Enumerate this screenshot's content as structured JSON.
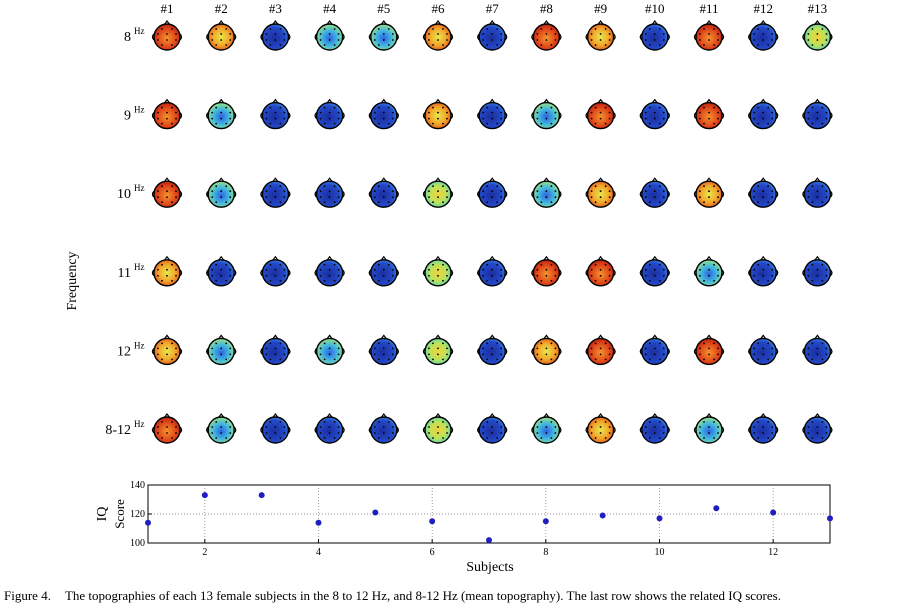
{
  "figure": {
    "subject_labels": [
      "#1",
      "#2",
      "#3",
      "#4",
      "#5",
      "#6",
      "#7",
      "#8",
      "#9",
      "#10",
      "#11",
      "#12",
      "#13"
    ],
    "y_axis_title": "Frequency",
    "rows": [
      {
        "label": "8",
        "unit": "Hz"
      },
      {
        "label": "9",
        "unit": "Hz"
      },
      {
        "label": "10",
        "unit": "Hz"
      },
      {
        "label": "11",
        "unit": "Hz"
      },
      {
        "label": "12",
        "unit": "Hz"
      },
      {
        "label": "8-12",
        "unit": "Hz"
      }
    ],
    "colors": {
      "high": "#d93a18",
      "mid_high": "#f2a52a",
      "mid": "#e8e84a",
      "mid_low": "#41d8c9",
      "low": "#2449c9",
      "outline": "#000000"
    },
    "topomaps": [
      [
        "high",
        "mid_high",
        "low",
        "mid_low",
        "mid_low",
        "mid_high",
        "low",
        "high",
        "mid_high",
        "low",
        "high",
        "low",
        "mid"
      ],
      [
        "high",
        "mid_low",
        "low",
        "low",
        "low",
        "mid_high",
        "low",
        "mid_low",
        "high",
        "low",
        "high",
        "low",
        "low"
      ],
      [
        "high",
        "mid_low",
        "low",
        "low",
        "low",
        "mid",
        "low",
        "mid_low",
        "mid_high",
        "low",
        "mid_high",
        "low",
        "low"
      ],
      [
        "mid_high",
        "low",
        "low",
        "low",
        "low",
        "mid",
        "low",
        "high",
        "high",
        "low",
        "mid_low",
        "low",
        "low"
      ],
      [
        "mid_high",
        "mid_low",
        "low",
        "mid_low",
        "low",
        "mid",
        "low",
        "mid_high",
        "high",
        "low",
        "high",
        "low",
        "low"
      ],
      [
        "high",
        "mid_low",
        "low",
        "low",
        "low",
        "mid",
        "low",
        "mid_low",
        "mid_high",
        "low",
        "mid_low",
        "low",
        "low"
      ]
    ]
  },
  "chart_data": {
    "type": "scatter",
    "xlabel": "Subjects",
    "ylabel_line1": "IQ",
    "ylabel_line2": "Score",
    "xlim": [
      1,
      13
    ],
    "ylim": [
      100,
      140
    ],
    "xticks": [
      "2",
      "4",
      "6",
      "8",
      "10",
      "12"
    ],
    "yticks": [
      "100",
      "120",
      "140"
    ],
    "grid": true,
    "marker_color": "#1f1fbf",
    "x": [
      1,
      2,
      3,
      4,
      5,
      6,
      7,
      8,
      9,
      10,
      11,
      12,
      13
    ],
    "y": [
      114,
      133,
      133,
      114,
      121,
      115,
      102,
      115,
      119,
      117,
      124,
      121,
      117
    ]
  },
  "caption": {
    "label": "Figure 4.",
    "text": "The topographies of each 13 female subjects in the 8 to 12 Hz, and 8-12 Hz (mean topography). The last row shows the related IQ scores."
  }
}
